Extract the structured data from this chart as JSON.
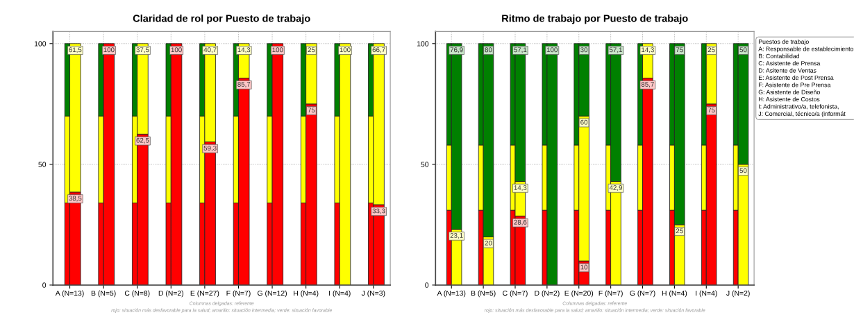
{
  "chart_data": [
    {
      "type": "bar",
      "title": "Claridad de rol por Puesto de trabajo",
      "categories": [
        "A (N=13)",
        "B (N=5)",
        "C (N=8)",
        "D (N=2)",
        "E (N=27)",
        "F (N=7)",
        "G (N=12)",
        "H (N=4)",
        "I (N=4)",
        "J (N=3)"
      ],
      "series": [
        {
          "color": "#ff0000",
          "base": [
            0,
            0,
            0,
            0,
            0,
            0,
            0,
            0,
            0,
            0
          ],
          "values": [
            34,
            34,
            34,
            34,
            34,
            34,
            34,
            34,
            34,
            34
          ]
        },
        {
          "color": "#ffff00",
          "base": [
            34,
            34,
            34,
            34,
            34,
            34,
            34,
            34,
            34,
            34
          ],
          "values": [
            36,
            36,
            36,
            36,
            36,
            36,
            36,
            36,
            36,
            36
          ]
        },
        {
          "color": "#008000",
          "base": [
            70,
            70,
            70,
            70,
            70,
            70,
            70,
            70,
            70,
            70
          ],
          "values": [
            30,
            30,
            30,
            30,
            30,
            30,
            30,
            30,
            30,
            30
          ]
        },
        {
          "color": "#ff0000",
          "base": [
            0,
            0,
            0,
            0,
            0,
            0,
            0,
            0,
            null,
            0
          ],
          "values": [
            38.5,
            100,
            62.5,
            100,
            59.3,
            85.7,
            100,
            75,
            0,
            33.3
          ],
          "value_labels": [
            "38,5",
            "100",
            "62,5",
            "100",
            "59,3",
            "85,7",
            "100",
            "75",
            null,
            "33,3"
          ]
        },
        {
          "color": "#ffff00",
          "base": [
            38.5,
            null,
            62.5,
            null,
            59.3,
            85.7,
            null,
            75,
            0,
            33.3
          ],
          "values": [
            61.5,
            0,
            37.5,
            0,
            40.7,
            14.3,
            0,
            25,
            100,
            66.7
          ],
          "value_labels": [
            "61,5",
            null,
            "37,5",
            null,
            "40,7",
            "14,3",
            null,
            "25",
            "100",
            "66,7"
          ]
        }
      ],
      "ylim": [
        0,
        105
      ],
      "yticks": [
        0,
        50,
        100
      ],
      "grid": true,
      "annotations": [
        "Columnas delgadas: referente",
        "rojo: situación más desfavorable para la salud; amarillo: situación intermedia; verde: situación favorable"
      ]
    },
    {
      "type": "bar",
      "title": "Ritmo de trabajo por Puesto de trabajo",
      "categories": [
        "A (N=13)",
        "B (N=5)",
        "C (N=7)",
        "D (N=2)",
        "E (N=20)",
        "F (N=7)",
        "G (N=7)",
        "H (N=4)",
        "I (N=4)",
        "J (N=2)"
      ],
      "series": [
        {
          "color": "#ff0000",
          "base": [
            0,
            0,
            0,
            0,
            0,
            0,
            0,
            0,
            0,
            0
          ],
          "values": [
            31,
            31,
            31,
            31,
            31,
            31,
            31,
            31,
            31,
            31
          ]
        },
        {
          "color": "#ffff00",
          "base": [
            31,
            31,
            31,
            31,
            31,
            31,
            31,
            31,
            31,
            31
          ],
          "values": [
            27,
            27,
            27,
            27,
            27,
            27,
            27,
            27,
            27,
            27
          ]
        },
        {
          "color": "#008000",
          "base": [
            58,
            58,
            58,
            58,
            58,
            58,
            58,
            58,
            58,
            58
          ],
          "values": [
            42,
            42,
            42,
            42,
            42,
            42,
            42,
            42,
            42,
            42
          ]
        },
        {
          "color": "#ff0000",
          "base": [
            null,
            null,
            0,
            null,
            0,
            null,
            0,
            null,
            0,
            null
          ],
          "values": [
            0,
            0,
            28.6,
            0,
            10,
            0,
            85.7,
            0,
            75,
            0
          ],
          "value_labels": [
            null,
            null,
            "28,6",
            null,
            "10",
            null,
            "85,7",
            null,
            "75",
            null
          ]
        },
        {
          "color": "#ffff00",
          "base": [
            0,
            0,
            28.6,
            null,
            10,
            0,
            85.7,
            0,
            75,
            0
          ],
          "values": [
            23.1,
            20,
            14.3,
            0,
            60,
            42.9,
            14.3,
            25,
            25,
            50
          ],
          "value_labels": [
            "23,1",
            "20",
            "14,3",
            null,
            "60",
            "42,9",
            "14,3",
            "25",
            "25",
            "50"
          ]
        },
        {
          "color": "#008000",
          "base": [
            23.1,
            20,
            42.9,
            0,
            70,
            42.9,
            null,
            25,
            null,
            50
          ],
          "values": [
            76.9,
            80,
            57.1,
            100,
            30,
            57.1,
            0,
            75,
            0,
            50
          ],
          "value_labels": [
            "76,9",
            "80",
            "57,1",
            "100",
            "30",
            "57,1",
            null,
            "75",
            null,
            "50"
          ]
        }
      ],
      "ylim": [
        0,
        105
      ],
      "yticks": [
        0,
        50,
        100
      ],
      "grid": true,
      "annotations": [
        "Columnas delgadas: referente",
        "rojo: situación más desfavorable para la salud; amarillo: situación intermedia; verde: situación favorable",
        "Puestos de trabajo\nA: Responsable de establecimiento\nB: Contabilidad\nC: Asistente de Prensa\nD: Asitente de Ventas\nE: Asistente de Post Prensa\nF: Asistente de Pre Prensa\nG: Asistente de Diseño\nH: Asistente de Costos\nI: Administrativo/a, telefonista,\nJ: Comercial, técnico/a (informát"
      ]
    }
  ]
}
